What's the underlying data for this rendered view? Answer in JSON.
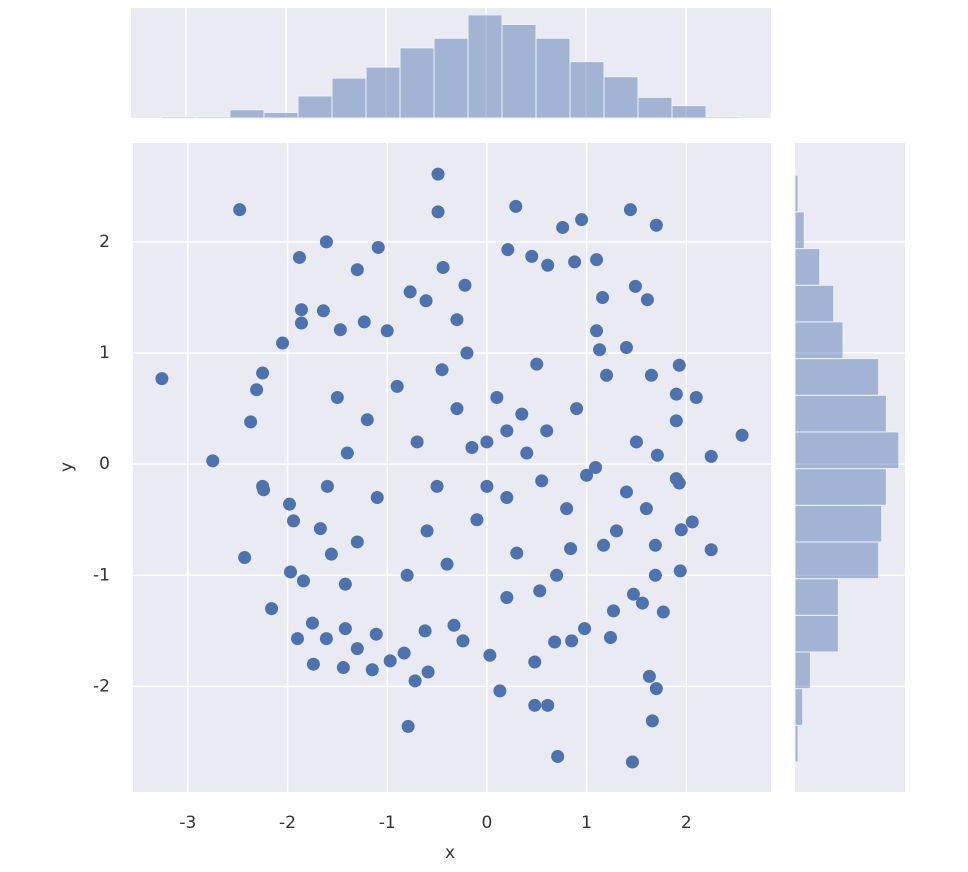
{
  "chart_data": [
    {
      "type": "scatter",
      "x_label": "x",
      "y_label": "y",
      "color": "#4c72b0",
      "grid": true,
      "xlim": [
        -3.55,
        2.85
      ],
      "ylim": [
        -2.95,
        2.89
      ],
      "xticks": [
        -3,
        -2,
        -1,
        0,
        1,
        2
      ],
      "yticks": [
        -2,
        -1,
        0,
        1,
        2
      ],
      "x": [
        -3.26,
        -2.75,
        -2.48,
        -0.49,
        -0.49,
        0.29,
        1.44,
        1.7,
        0.95,
        0.76,
        -1.88,
        -1.61,
        -1.09,
        -1.3,
        2.56,
        2.25,
        2.25,
        2.1,
        1.93,
        -0.79,
        0.71,
        1.46,
        1.66,
        1.7,
        1.63,
        0.13,
        0.48,
        0.61,
        -2.43,
        -2.16,
        -2.37,
        -2.31,
        -2.25,
        -2.05,
        -2.25,
        -2.24,
        -1.98,
        -1.94,
        -1.97,
        -1.84,
        -1.9,
        -1.74,
        -1.75,
        -1.61,
        -1.44,
        -1.42,
        -1.3,
        -1.15,
        -1.11,
        -0.97,
        -0.83,
        -0.72,
        -0.59,
        -1.67,
        -1.56,
        -1.42,
        -1.86,
        -1.86,
        -1.64,
        -1.47,
        -1.23,
        -0.77,
        -0.61,
        -0.44,
        -0.22,
        0.21,
        0.45,
        0.61,
        0.88,
        1.1,
        1.16,
        1.49,
        1.61,
        1.4,
        1.13,
        1.65,
        1.9,
        1.9,
        1.71,
        1.9,
        1.93,
        2.06,
        1.95,
        1.69,
        1.94,
        1.69,
        1.47,
        1.56,
        1.77,
        1.27,
        1.24,
        0.98,
        0.85,
        0.68,
        0.48,
        0.03,
        -0.24,
        -0.33,
        -0.62,
        1.17,
        1.4,
        1.09,
        0.84,
        0.53,
        0,
        0.2,
        -0.3,
        0.4,
        -0.5,
        0.1,
        -0.1,
        0.6,
        -0.7,
        0.3,
        -0.4,
        0.8,
        -0.9,
        0.5,
        -0.2,
        0.9,
        -1.1,
        1,
        -0.6,
        0.2,
        -1.2,
        1.2,
        -0.8,
        0.7,
        -1.4,
        1.3,
        -0.3,
        0.2,
        -1,
        1.1,
        -1.3,
        0,
        0.35,
        -0.15,
        0.55,
        -0.45,
        -1.5,
        1.5,
        -1.6,
        1.6
      ],
      "y": [
        0.77,
        0.03,
        2.29,
        2.61,
        2.27,
        2.32,
        2.29,
        2.15,
        2.2,
        2.13,
        1.86,
        2,
        1.95,
        1.75,
        0.26,
        0.07,
        -0.77,
        0.6,
        0.89,
        -2.36,
        -2.63,
        -2.68,
        -2.31,
        -2.02,
        -1.91,
        -2.04,
        -2.17,
        -2.17,
        -0.84,
        -1.3,
        0.38,
        0.67,
        0.82,
        1.09,
        -0.2,
        -0.23,
        -0.36,
        -0.51,
        -0.97,
        -1.05,
        -1.57,
        -1.8,
        -1.43,
        -1.57,
        -1.83,
        -1.48,
        -1.66,
        -1.85,
        -1.53,
        -1.77,
        -1.7,
        -1.95,
        -1.87,
        -0.58,
        -0.81,
        -1.08,
        1.39,
        1.27,
        1.38,
        1.21,
        1.28,
        1.55,
        1.47,
        1.77,
        1.61,
        1.93,
        1.87,
        1.79,
        1.82,
        1.84,
        1.5,
        1.6,
        1.48,
        1.05,
        1.03,
        0.8,
        0.63,
        0.39,
        0.08,
        -0.13,
        -0.17,
        -0.52,
        -0.59,
        -0.73,
        -0.96,
        -1,
        -1.17,
        -1.25,
        -1.33,
        -1.32,
        -1.56,
        -1.48,
        -1.59,
        -1.6,
        -1.78,
        -1.72,
        -1.59,
        -1.45,
        -1.5,
        -0.73,
        -0.25,
        -0.03,
        -0.76,
        -1.14,
        0.2,
        -0.3,
        0.5,
        0.1,
        -0.2,
        0.6,
        -0.5,
        0.3,
        0.2,
        -0.8,
        -0.9,
        -0.4,
        0.7,
        0.9,
        1,
        0.5,
        -0.3,
        -0.1,
        -0.6,
        0.3,
        0.4,
        0.8,
        -1,
        -1,
        0.1,
        -0.6,
        1.3,
        -1.2,
        1.2,
        1.2,
        -0.7,
        -0.2,
        0.45,
        0.15,
        -0.15,
        0.85,
        0.6,
        0.2,
        -0.2,
        -0.4
      ]
    },
    {
      "type": "histogram",
      "orientation": "vertical",
      "color": "#4c72b0",
      "grid": true,
      "xlim": [
        -3.55,
        2.85
      ],
      "xticks": [
        -3,
        -2,
        -1,
        0,
        1,
        2
      ],
      "countlim": [
        0,
        80
      ],
      "bins": [
        -3.24,
        -2.9,
        -2.56,
        -2.22,
        -1.88,
        -1.54,
        -1.2,
        -0.86,
        -0.52,
        -0.18,
        0.16,
        0.5,
        0.84,
        1.18,
        1.52,
        1.86,
        2.2,
        2.54
      ],
      "counts": [
        1,
        1,
        6,
        4,
        16,
        29,
        37,
        51,
        58,
        75,
        68,
        58,
        41,
        30,
        15,
        9,
        1
      ]
    },
    {
      "type": "histogram",
      "orientation": "horizontal",
      "color": "#4c72b0",
      "grid": true,
      "ylim": [
        -2.95,
        2.89
      ],
      "yticks": [
        -2,
        -1,
        0,
        1,
        2
      ],
      "countlim": [
        0,
        71
      ],
      "bins": [
        -2.68,
        -2.35,
        -2.02,
        -1.69,
        -1.36,
        -1.03,
        -0.7,
        -0.37,
        -0.04,
        0.29,
        0.62,
        0.95,
        1.28,
        1.61,
        1.94,
        2.27,
        2.6
      ],
      "counts": [
        2,
        5,
        10,
        28,
        28,
        54,
        56,
        59,
        67,
        59,
        54,
        31,
        25,
        16,
        6,
        2
      ]
    }
  ]
}
